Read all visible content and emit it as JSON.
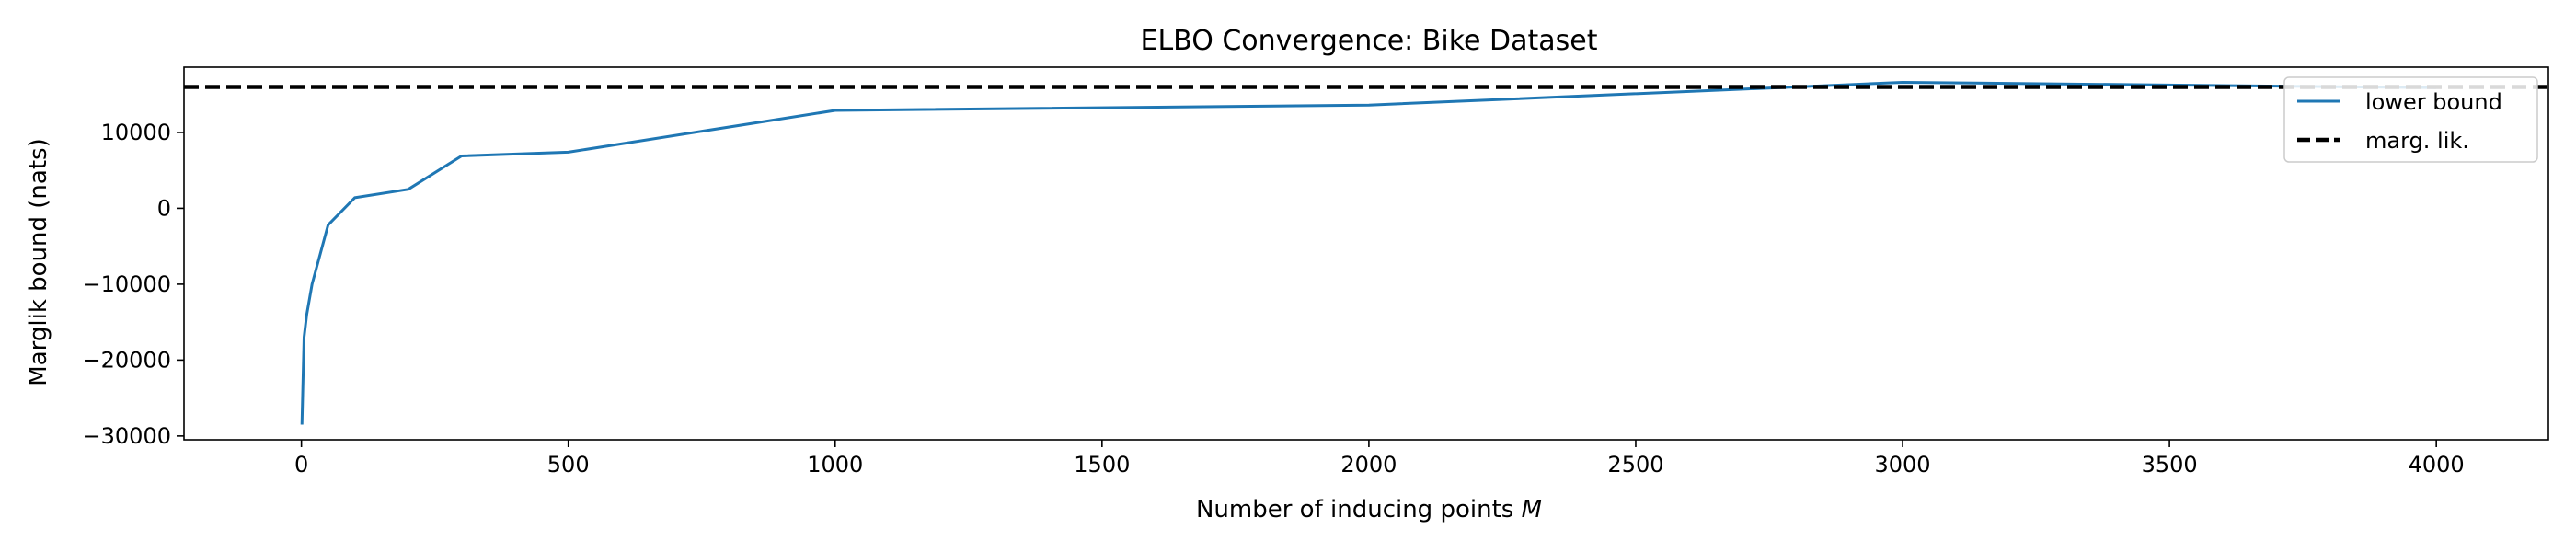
{
  "chart_data": {
    "type": "line",
    "title": "ELBO Convergence: Bike Dataset",
    "xlabel": "Number of inducing points",
    "xlabel_var": "M",
    "ylabel": "Marglik bound (nats)",
    "xlim": [
      -220,
      4210
    ],
    "ylim": [
      -30500,
      18600
    ],
    "xticks": [
      0,
      500,
      1000,
      1500,
      2000,
      2500,
      3000,
      3500,
      4000
    ],
    "xtick_labels": [
      "0",
      "500",
      "1000",
      "1500",
      "2000",
      "2500",
      "3000",
      "3500",
      "4000"
    ],
    "yticks": [
      -30000,
      -20000,
      -10000,
      0,
      10000
    ],
    "ytick_labels": [
      "−30000",
      "−20000",
      "−10000",
      "0",
      "10000"
    ],
    "grid": false,
    "legend_position": "top-right",
    "series": [
      {
        "name": "lower bound",
        "color": "#1f77b4",
        "style": "solid",
        "x": [
          1,
          5,
          10,
          20,
          50,
          100,
          200,
          300,
          500,
          1000,
          2000,
          3000,
          4000
        ],
        "y": [
          -28500,
          -17000,
          -14000,
          -10000,
          -2200,
          1400,
          2500,
          6900,
          7400,
          12900,
          13600,
          16600,
          15900
        ]
      },
      {
        "name": "marg. lik.",
        "color": "#000000",
        "style": "dashed",
        "hline": 16000
      }
    ]
  }
}
